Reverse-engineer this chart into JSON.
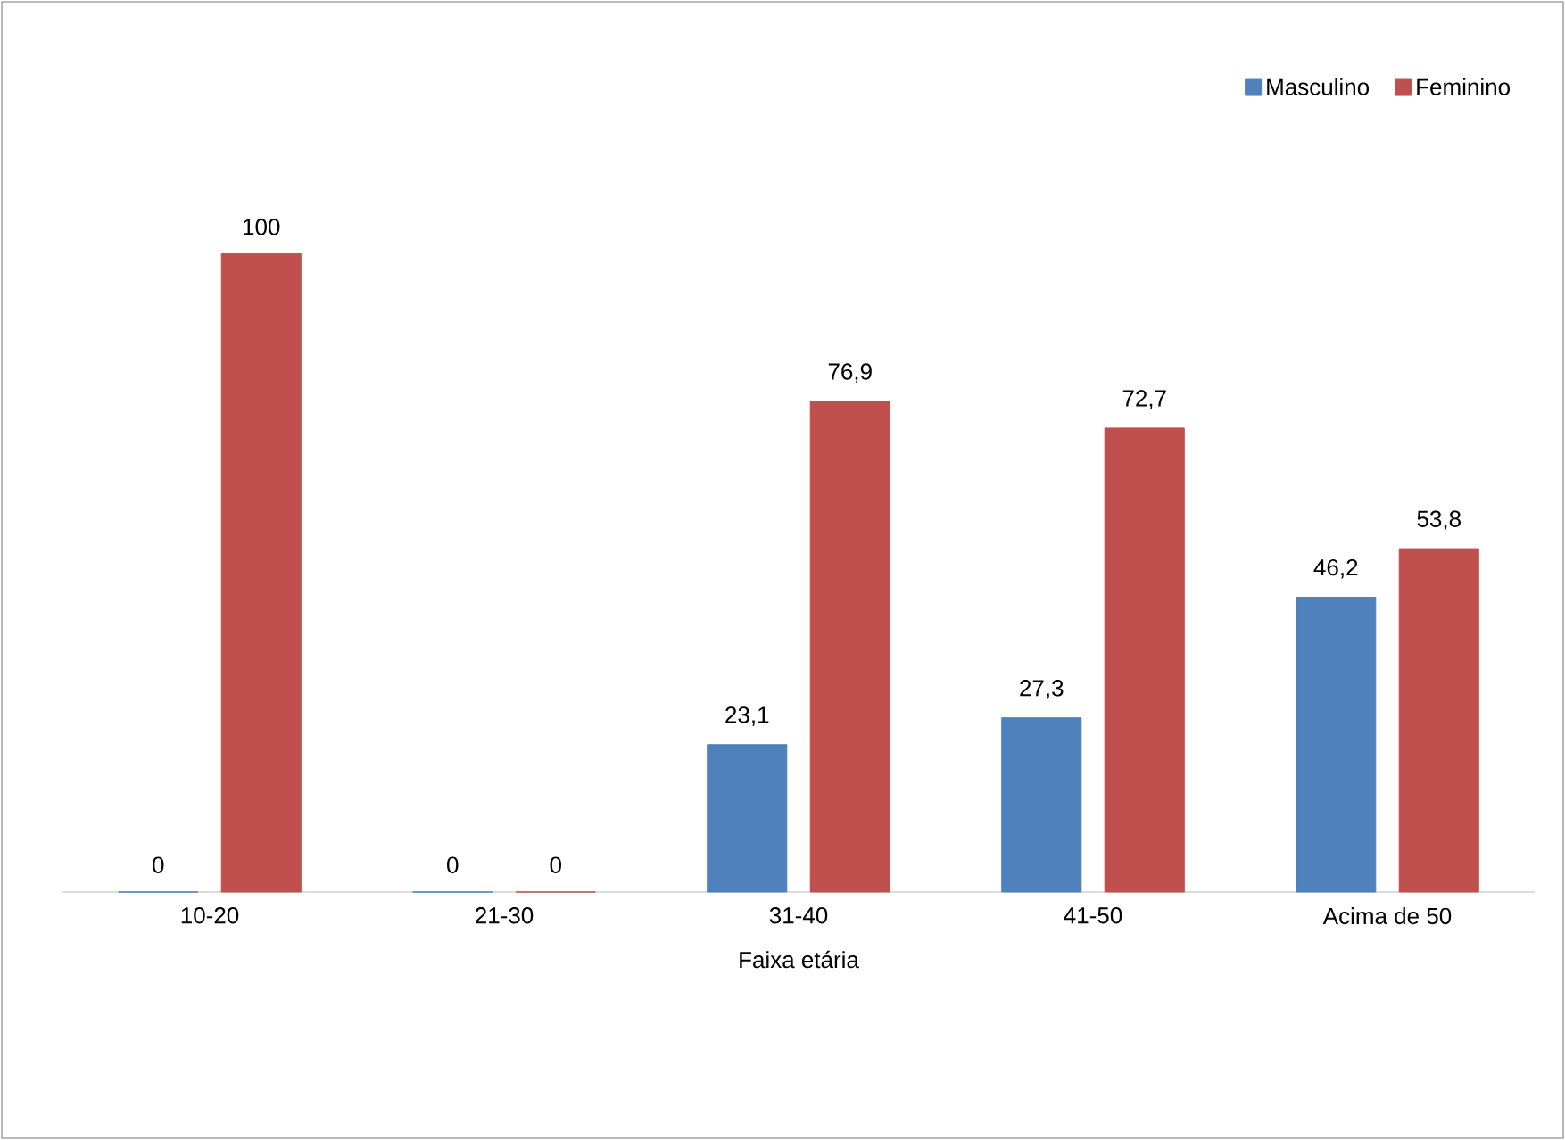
{
  "chart_data": {
    "type": "bar",
    "xlabel": "Faixa etária",
    "categories": [
      "10-20",
      "21-30",
      "31-40",
      "41-50",
      "Acima de 50"
    ],
    "series": [
      {
        "name": "Masculino",
        "color": "#4f81bd",
        "values": [
          0,
          0,
          23.1,
          27.3,
          46.2
        ],
        "value_labels": [
          "0",
          "0",
          "23,1",
          "27,3",
          "46,2"
        ]
      },
      {
        "name": "Feminino",
        "color": "#c0504d",
        "values": [
          100,
          0,
          76.9,
          72.7,
          53.8
        ],
        "value_labels": [
          "100",
          "0",
          "76,9",
          "72,7",
          "53,8"
        ]
      }
    ],
    "legend": "top right"
  }
}
